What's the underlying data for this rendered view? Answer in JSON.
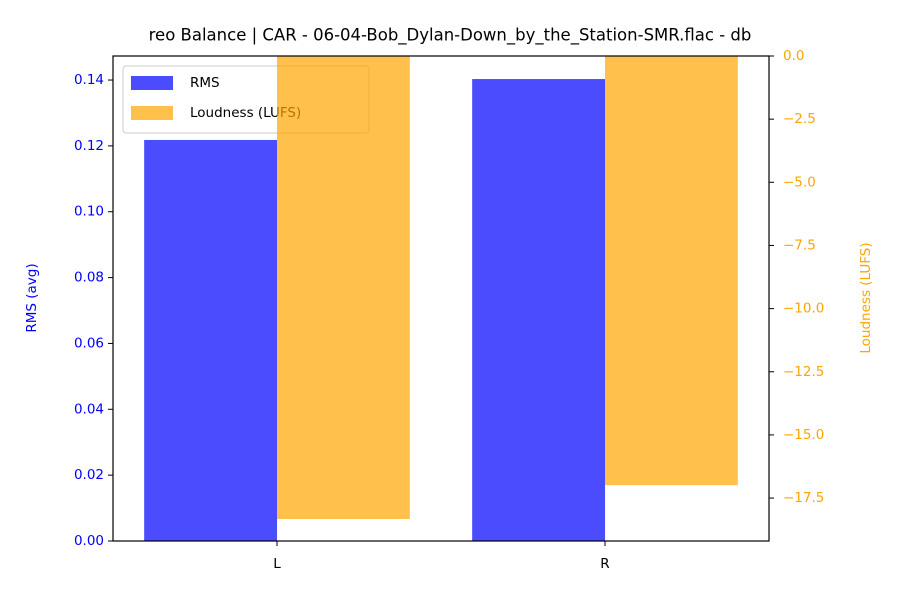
{
  "chart_data": {
    "type": "bar",
    "title": "reo Balance | CAR - 06-04-Bob_Dylan-Down_by_the_Station-SMR.flac - db",
    "categories": [
      "L",
      "R"
    ],
    "series": [
      {
        "name": "RMS",
        "color": "#0000ff",
        "values": [
          0.1218,
          0.1403
        ]
      },
      {
        "name": "Loudness (LUFS)",
        "color": "#ffa500",
        "axis": "y2",
        "values": [
          -18.33,
          -16.99
        ]
      }
    ],
    "ylabel": "RMS (avg)",
    "y2label": "Loudness (LUFS)",
    "ylim": [
      0,
      0.1473
    ],
    "yticks": [
      {
        "value": 0,
        "label": "0.00"
      },
      {
        "value": 0.02,
        "label": "0.02"
      },
      {
        "value": 0.04,
        "label": "0.04"
      },
      {
        "value": 0.06,
        "label": "0.06"
      },
      {
        "value": 0.08,
        "label": "0.08"
      },
      {
        "value": 0.1,
        "label": "0.10"
      },
      {
        "value": 0.12,
        "label": "0.12"
      },
      {
        "value": 0.14,
        "label": "0.14"
      }
    ],
    "y2lim": [
      -19.2,
      0
    ],
    "y2ticks": [
      {
        "value": 0,
        "label": "0.0"
      },
      {
        "value": -2.5,
        "label": "−2.5"
      },
      {
        "value": -5,
        "label": "−5.0"
      },
      {
        "value": -7.5,
        "label": "−7.5"
      },
      {
        "value": -10,
        "label": "−10.0"
      },
      {
        "value": -12.5,
        "label": "−12.5"
      },
      {
        "value": -15,
        "label": "−15.0"
      },
      {
        "value": -17.5,
        "label": "−17.5"
      }
    ],
    "legend": "upper left",
    "opacity": 0.7
  }
}
